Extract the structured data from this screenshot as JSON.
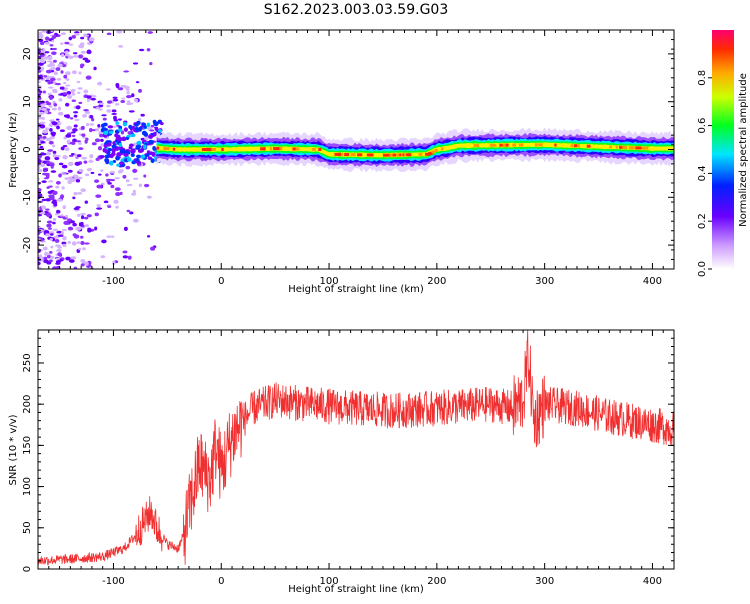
{
  "title": "S162.2023.003.03.59.G03",
  "chart_data": [
    {
      "type": "heatmap",
      "xlabel": "Height of straight line (km)",
      "ylabel": "Frequency (Hz)",
      "xlim": [
        -170,
        420
      ],
      "ylim": [
        -25,
        25
      ],
      "x_ticks": [
        -100,
        0,
        100,
        200,
        300,
        400
      ],
      "y_ticks": [
        -20,
        -10,
        0,
        10,
        20
      ],
      "colorbar": {
        "label": "Normalized spectral amplitude",
        "range": [
          0.0,
          1.0
        ],
        "ticks": [
          0.0,
          0.2,
          0.4,
          0.6,
          0.8
        ],
        "tick_labels": [
          "0.0",
          "0.2",
          "0.4",
          "0.6",
          "0.8"
        ],
        "colormap": [
          "#ffffff",
          "#7b00ff",
          "#0000ff",
          "#00e5ff",
          "#00ff00",
          "#ffff00",
          "#ff6600",
          "#ff0050"
        ]
      },
      "ridge": {
        "x": [
          -60,
          -40,
          0,
          50,
          90,
          100,
          150,
          190,
          200,
          210,
          220,
          300,
          400,
          420
        ],
        "frequency": [
          0.3,
          0.0,
          0.0,
          0.2,
          0.0,
          -1.0,
          -1.2,
          -1.0,
          0.0,
          0.3,
          0.8,
          1.0,
          0.2,
          0.2
        ]
      },
      "scattered_region_x": [
        -170,
        -60
      ]
    },
    {
      "type": "line",
      "xlabel": "Height of straight line (km)",
      "ylabel": "SNR (10 * v/v)",
      "xlim": [
        -170,
        420
      ],
      "ylim": [
        0,
        290
      ],
      "x_ticks": [
        -100,
        0,
        100,
        200,
        300,
        400
      ],
      "y_ticks": [
        0,
        50,
        100,
        150,
        200,
        250
      ],
      "color": "#f03030",
      "series": [
        {
          "x": [
            -170,
            -140,
            -110,
            -90,
            -80,
            -70,
            -65,
            -60,
            -50,
            -40,
            -35,
            -30,
            -25,
            -20,
            -15,
            -10,
            -5,
            0,
            5,
            10,
            15,
            20,
            30,
            50,
            80,
            120,
            160,
            200,
            250,
            270,
            280,
            285,
            290,
            300,
            330,
            360,
            400,
            420
          ],
          "values": [
            10,
            12,
            15,
            25,
            40,
            60,
            70,
            50,
            30,
            25,
            40,
            70,
            100,
            130,
            115,
            110,
            150,
            120,
            140,
            160,
            170,
            180,
            195,
            205,
            200,
            195,
            192,
            195,
            200,
            195,
            205,
            260,
            180,
            200,
            195,
            185,
            175,
            170
          ]
        }
      ]
    }
  ]
}
